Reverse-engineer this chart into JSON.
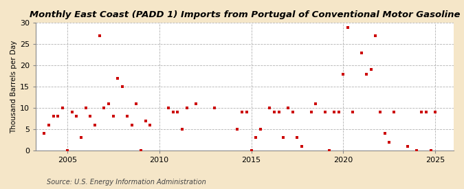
{
  "title": "Monthly East Coast (PADD 1) Imports from Portugal of Conventional Motor Gasoline",
  "ylabel": "Thousand Barrels per Day",
  "source": "Source: U.S. Energy Information Administration",
  "fig_bg_color": "#f5e6c8",
  "plot_bg_color": "#ffffff",
  "marker_color": "#cc0000",
  "marker_size": 12,
  "xlim": [
    2003.3,
    2026.0
  ],
  "ylim": [
    0,
    30
  ],
  "yticks": [
    0,
    5,
    10,
    15,
    20,
    25,
    30
  ],
  "xticks": [
    2005,
    2010,
    2015,
    2020,
    2025
  ],
  "title_fontsize": 9.5,
  "tick_labelsize": 8,
  "ylabel_fontsize": 7.5,
  "source_fontsize": 7,
  "data_x": [
    2003.75,
    2004.0,
    2004.25,
    2004.5,
    2004.75,
    2005.0,
    2005.25,
    2005.5,
    2005.75,
    2006.0,
    2006.25,
    2006.5,
    2006.75,
    2007.0,
    2007.25,
    2007.5,
    2007.75,
    2008.0,
    2008.25,
    2008.5,
    2008.75,
    2009.0,
    2009.25,
    2009.5,
    2010.5,
    2010.75,
    2011.0,
    2011.25,
    2011.5,
    2012.0,
    2013.0,
    2014.25,
    2014.5,
    2014.75,
    2015.0,
    2015.25,
    2015.5,
    2016.0,
    2016.25,
    2016.5,
    2016.75,
    2017.0,
    2017.25,
    2017.5,
    2017.75,
    2018.25,
    2018.5,
    2019.0,
    2019.25,
    2019.5,
    2019.75,
    2020.0,
    2020.25,
    2020.5,
    2021.0,
    2021.25,
    2021.5,
    2021.75,
    2022.0,
    2022.25,
    2022.5,
    2022.75,
    2023.5,
    2024.0,
    2024.25,
    2024.5,
    2024.75,
    2025.0
  ],
  "data_y": [
    4,
    6,
    8,
    8,
    10,
    0,
    9,
    8,
    3,
    10,
    8,
    6,
    27,
    10,
    11,
    8,
    17,
    15,
    8,
    6,
    11,
    0,
    7,
    6,
    10,
    9,
    9,
    5,
    10,
    11,
    10,
    5,
    9,
    9,
    0,
    3,
    5,
    10,
    9,
    9,
    3,
    10,
    9,
    3,
    1,
    9,
    11,
    9,
    0,
    9,
    9,
    18,
    29,
    9,
    23,
    18,
    19,
    27,
    9,
    4,
    2,
    9,
    1,
    0,
    9,
    9,
    0,
    9
  ]
}
